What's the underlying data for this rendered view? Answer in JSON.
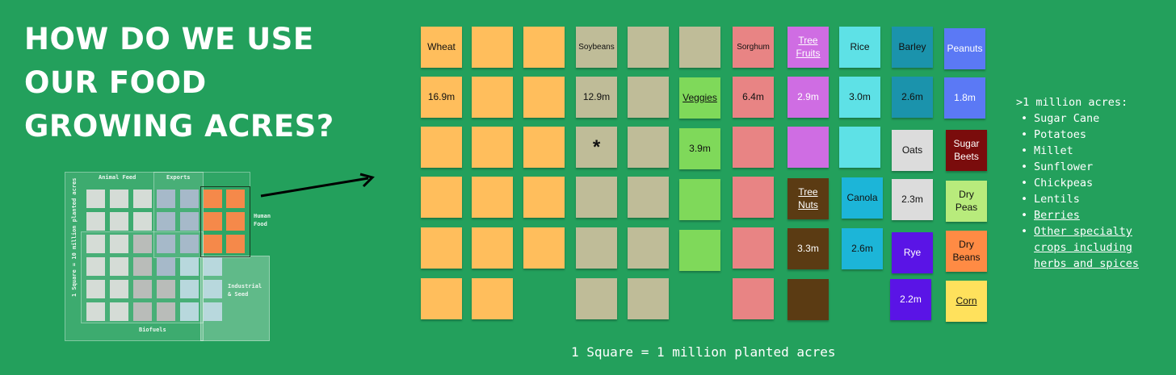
{
  "title": {
    "line1": "HOW DO WE USE",
    "line2": "OUR FOOD",
    "line3": "GROWING ACRES?"
  },
  "overview": {
    "animal_feed": "Animal Feed",
    "exports": "Exports",
    "human_food": "Human Food",
    "industrial": "Industrial & Seed",
    "biofuels": "Biofuels",
    "scale": "1 Square = 10 million planted acres"
  },
  "colors": {
    "background": "#23a05c",
    "wheat": "#ffbe5c",
    "soybeans": "#bfbc98",
    "veggies": "#7fd95a",
    "sorghum": "#e88484",
    "tree_fruits": "#cf6de3",
    "rice": "#5ee1e6",
    "barley": "#1b93ac",
    "peanuts": "#5b79f5",
    "tree_nuts": "#5b3b13",
    "canola": "#1cb5d8",
    "oats": "#dcdcdc",
    "sugar_beets": "#7a0c0c",
    "dry_peas": "#b8eb7c",
    "rye": "#5a14e6",
    "dry_beans": "#ff8b44",
    "corn": "#ffe15c"
  },
  "crops": {
    "wheat": {
      "name": "Wheat",
      "value": "16.9m"
    },
    "soybeans": {
      "name": "Soybeans",
      "value": "12.9m",
      "note": "*"
    },
    "veggies": {
      "name": "Veggies",
      "value": "3.9m"
    },
    "sorghum": {
      "name": "Sorghum",
      "value": "6.4m"
    },
    "tree_fruits": {
      "name": "Tree Fruits",
      "value": "2.9m"
    },
    "rice": {
      "name": "Rice",
      "value": "3.0m"
    },
    "barley": {
      "name": "Barley",
      "value": "2.6m"
    },
    "peanuts": {
      "name": "Peanuts",
      "value": "1.8m"
    },
    "tree_nuts": {
      "name": "Tree Nuts",
      "value": "3.3m"
    },
    "canola": {
      "name": "Canola",
      "value": "2.6m"
    },
    "oats": {
      "name": "Oats",
      "value": "2.3m"
    },
    "sugar_beets": {
      "name": "Sugar Beets"
    },
    "dry_peas": {
      "name": "Dry Peas"
    },
    "rye": {
      "name": "Rye",
      "value": "2.2m"
    },
    "dry_beans": {
      "name": "Dry Beans"
    },
    "corn": {
      "name": "Corn"
    }
  },
  "side_list": {
    "heading": ">1 million acres:",
    "items": [
      "Sugar Cane",
      "Potatoes",
      "Millet",
      "Sunflower",
      "Chickpeas",
      "Lentils",
      "Berries",
      "Other specialty crops including herbs and spices"
    ]
  },
  "footer": "1 Square = 1 million planted acres"
}
